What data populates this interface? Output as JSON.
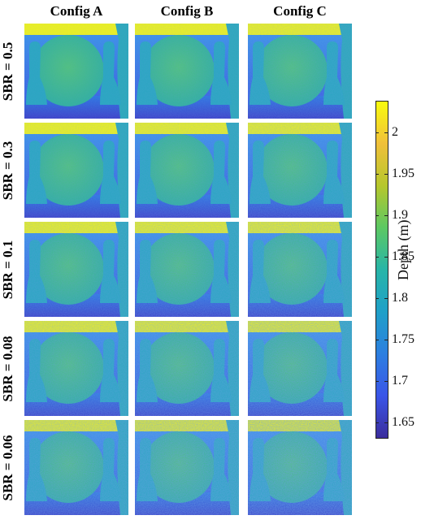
{
  "columns": [
    "Config A",
    "Config B",
    "Config C"
  ],
  "rows": [
    "SBR = 0.5",
    "SBR = 0.3",
    "SBR = 0.1",
    "SBR = 0.08",
    "SBR = 0.06"
  ],
  "colorbar": {
    "label": "Depth (m)",
    "ticks": [
      "2",
      "1.95",
      "1.9",
      "1.85",
      "1.8",
      "1.75",
      "1.7",
      "1.65"
    ],
    "colors": [
      "#f9fb0e",
      "#f0c03a",
      "#b6c72c",
      "#5cc863",
      "#28b5a8",
      "#1fa0c8",
      "#2c7fe0",
      "#3a55e8",
      "#3b2d9c"
    ]
  }
}
